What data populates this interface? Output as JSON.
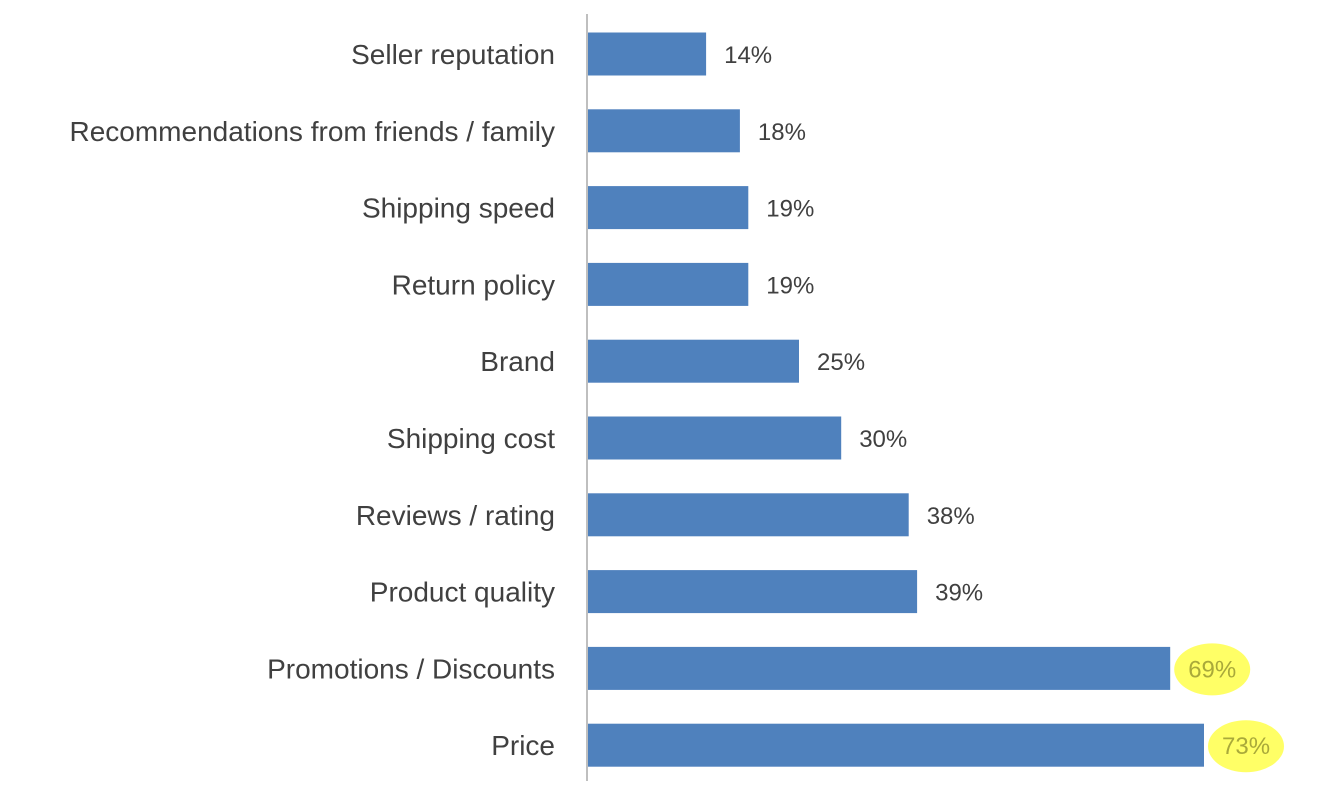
{
  "chart_data": {
    "type": "bar",
    "orientation": "horizontal",
    "categories": [
      "Seller reputation",
      "Recommendations from friends / family",
      "Shipping speed",
      "Return policy",
      "Brand",
      "Shipping cost",
      "Reviews / rating",
      "Product quality",
      "Promotions / Discounts",
      "Price"
    ],
    "values": [
      14,
      18,
      19,
      19,
      25,
      30,
      38,
      39,
      69,
      73
    ],
    "value_labels": [
      "14%",
      "18%",
      "19%",
      "19%",
      "25%",
      "30%",
      "38%",
      "39%",
      "69%",
      "73%"
    ],
    "highlighted": [
      false,
      false,
      false,
      false,
      false,
      false,
      false,
      false,
      true,
      true
    ],
    "unit": "%",
    "xlim": [
      0,
      73
    ],
    "grid": false,
    "legend": "none",
    "title": "",
    "xlabel": "",
    "ylabel": "",
    "colors": {
      "bar": "#4f81bd",
      "axis": "#bfbfbf",
      "label_text": "#404040",
      "highlight_fill": "#ffff66",
      "highlight_text": "#a9a93a"
    }
  }
}
